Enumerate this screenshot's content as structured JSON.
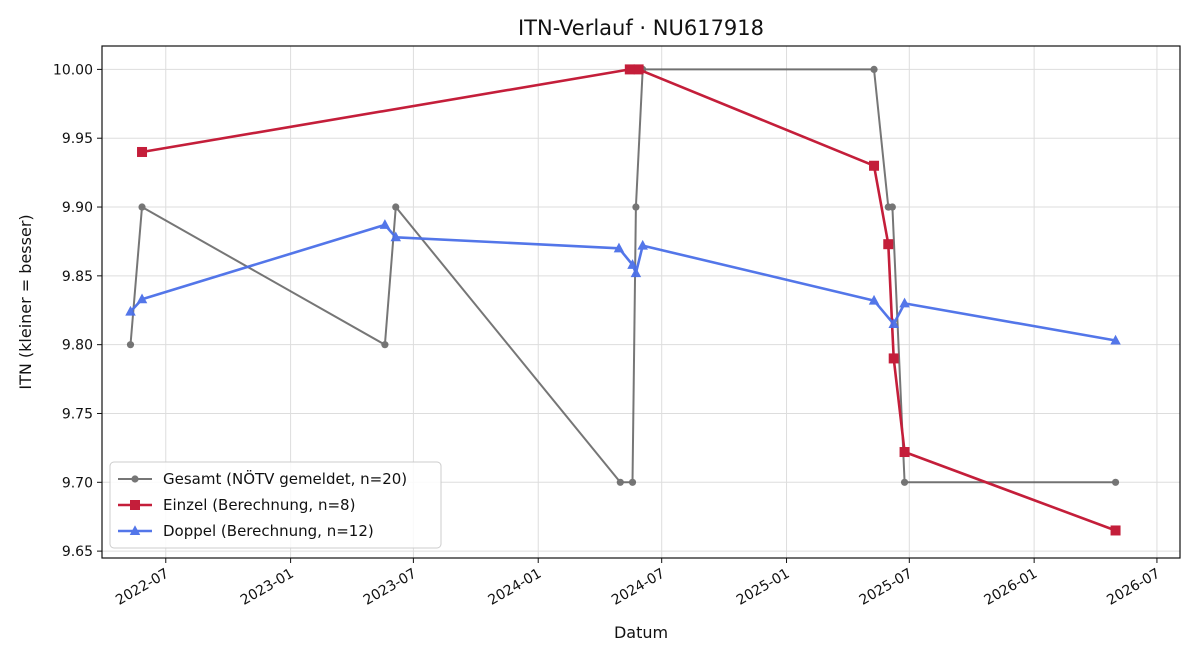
{
  "chart_data": {
    "type": "line",
    "title": "ITN-Verlauf · NU617918",
    "xlabel": "Datum",
    "ylabel": "ITN  (kleiner = besser)",
    "ylim": [
      9.645,
      10.017
    ],
    "xlim": [
      "2022-03-29",
      "2026-08-04"
    ],
    "yticks": [
      9.65,
      9.7,
      9.75,
      9.8,
      9.85,
      9.9,
      9.95,
      10.0
    ],
    "xticks": [
      "2022-07",
      "2023-01",
      "2023-07",
      "2024-01",
      "2024-07",
      "2025-01",
      "2025-07",
      "2026-01",
      "2026-07"
    ],
    "grid": true,
    "legend_position": "lower-left",
    "series": [
      {
        "name": "Gesamt (NÖTV gemeldet, n=20)",
        "color": "#555555",
        "marker": "circle",
        "points": [
          [
            "2022-05-10",
            9.8
          ],
          [
            "2022-05-27",
            9.9
          ],
          [
            "2023-05-20",
            9.8
          ],
          [
            "2023-06-05",
            9.9
          ],
          [
            "2024-05-01",
            9.7
          ],
          [
            "2024-05-19",
            9.7
          ],
          [
            "2024-05-24",
            9.9
          ],
          [
            "2024-06-03",
            10.0
          ],
          [
            "2025-05-10",
            10.0
          ],
          [
            "2025-05-31",
            9.9
          ],
          [
            "2025-06-06",
            9.9
          ],
          [
            "2025-06-24",
            9.7
          ],
          [
            "2026-05-01",
            9.7
          ]
        ]
      },
      {
        "name": "Einzel (Berechnung, n=8)",
        "color": "#c41e3a",
        "marker": "square",
        "points": [
          [
            "2022-05-27",
            9.94
          ],
          [
            "2024-05-15",
            10.0
          ],
          [
            "2024-05-28",
            10.0
          ],
          [
            "2025-05-10",
            9.93
          ],
          [
            "2025-05-31",
            9.873
          ],
          [
            "2025-06-08",
            9.79
          ],
          [
            "2025-06-24",
            9.722
          ],
          [
            "2026-05-01",
            9.665
          ]
        ]
      },
      {
        "name": "Doppel (Berechnung, n=12)",
        "color": "#4a6fe8",
        "marker": "triangle",
        "points": [
          [
            "2022-05-10",
            9.824
          ],
          [
            "2022-05-27",
            9.833
          ],
          [
            "2023-05-20",
            9.887
          ],
          [
            "2023-06-05",
            9.878
          ],
          [
            "2024-04-29",
            9.87
          ],
          [
            "2024-05-19",
            9.858
          ],
          [
            "2024-05-24",
            9.852
          ],
          [
            "2024-06-03",
            9.872
          ],
          [
            "2025-05-10",
            9.832
          ],
          [
            "2025-06-08",
            9.815
          ],
          [
            "2025-06-24",
            9.83
          ],
          [
            "2026-05-01",
            9.803
          ]
        ]
      }
    ]
  }
}
